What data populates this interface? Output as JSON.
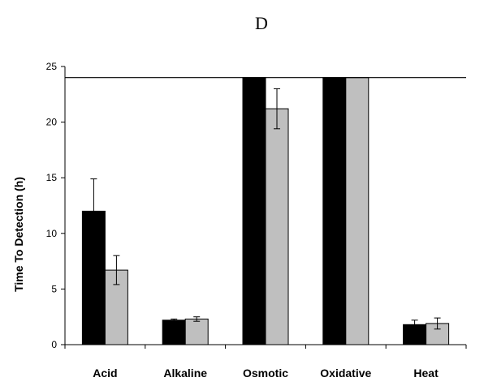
{
  "chart_data": {
    "type": "bar",
    "panel_label": "D",
    "ylabel": "Time To Detection (h)",
    "xlabel": "",
    "ylim": [
      0,
      25
    ],
    "yticks": [
      "0",
      "5",
      "10",
      "15",
      "20",
      "25"
    ],
    "categories": [
      "Acid",
      "Alkaline",
      "Osmotic",
      "Oxidative",
      "Heat"
    ],
    "series": [
      {
        "color": "#000000",
        "values": [
          12.0,
          2.2,
          24,
          24,
          1.8
        ],
        "errors": [
          2.9,
          0.1,
          0,
          0,
          0.4
        ]
      },
      {
        "color": "#bfbfbf",
        "values": [
          6.7,
          2.3,
          21.2,
          24,
          1.9
        ],
        "errors": [
          1.3,
          0.2,
          1.8,
          0,
          0.5
        ]
      }
    ],
    "reference_line": 24,
    "grid": false,
    "legend": "none"
  }
}
